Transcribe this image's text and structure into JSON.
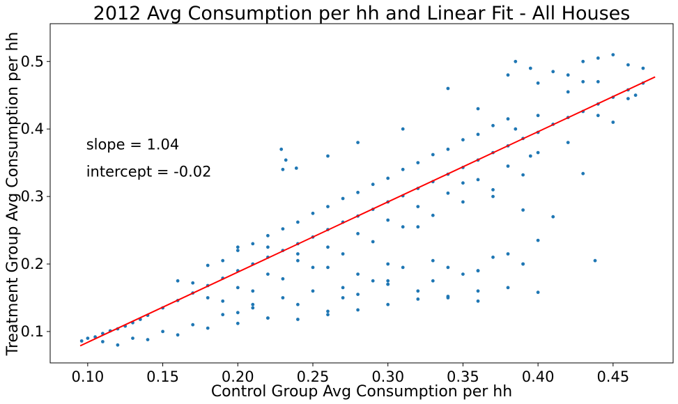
{
  "chart_data": {
    "type": "scatter",
    "title": "2012 Avg Consumption per hh and Linear Fit - All Houses",
    "xlabel": "Control Group Avg Consumption per hh",
    "ylabel": "Treatment Group Avg Consumption per hh",
    "xlim": [
      0.075,
      0.49
    ],
    "ylim": [
      0.0535,
      0.556
    ],
    "xticks": [
      "0.10",
      "0.15",
      "0.20",
      "0.25",
      "0.30",
      "0.35",
      "0.40",
      "0.45"
    ],
    "yticks": [
      "0.1",
      "0.2",
      "0.3",
      "0.4",
      "0.5"
    ],
    "grid": false,
    "annotations": [
      {
        "label": "slope = 1.04",
        "x": 0.099,
        "y": 0.378
      },
      {
        "label": "intercept = -0.02",
        "x": 0.099,
        "y": 0.338
      }
    ],
    "fit": {
      "slope": 1.04,
      "intercept": -0.02,
      "x_range": [
        0.095,
        0.478
      ],
      "color": "#ff0000"
    },
    "scatter_color": "#1f77b4",
    "points_x": [
      0.096,
      0.1,
      0.105,
      0.11,
      0.115,
      0.12,
      0.125,
      0.13,
      0.135,
      0.14,
      0.15,
      0.16,
      0.17,
      0.18,
      0.19,
      0.2,
      0.21,
      0.22,
      0.23,
      0.24,
      0.25,
      0.26,
      0.27,
      0.28,
      0.29,
      0.3,
      0.31,
      0.32,
      0.33,
      0.34,
      0.35,
      0.36,
      0.37,
      0.38,
      0.39,
      0.4,
      0.41,
      0.42,
      0.43,
      0.44,
      0.45,
      0.46,
      0.47,
      0.16,
      0.18,
      0.2,
      0.22,
      0.24,
      0.26,
      0.28,
      0.3,
      0.32,
      0.34,
      0.36,
      0.38,
      0.17,
      0.19,
      0.21,
      0.23,
      0.25,
      0.27,
      0.29,
      0.31,
      0.33,
      0.35,
      0.37,
      0.18,
      0.2,
      0.22,
      0.24,
      0.26,
      0.28,
      0.3,
      0.32,
      0.34,
      0.36,
      0.38,
      0.4,
      0.19,
      0.21,
      0.23,
      0.25,
      0.27,
      0.29,
      0.31,
      0.33,
      0.35,
      0.37,
      0.39,
      0.2,
      0.22,
      0.24,
      0.26,
      0.28,
      0.3,
      0.32,
      0.34,
      0.36,
      0.38,
      0.4,
      0.42,
      0.44,
      0.41,
      0.43,
      0.45,
      0.46,
      0.44,
      0.42,
      0.4,
      0.21,
      0.24,
      0.27,
      0.3,
      0.33,
      0.36,
      0.39,
      0.37,
      0.35,
      0.33,
      0.31,
      0.29,
      0.27,
      0.25,
      0.23,
      0.21,
      0.19,
      0.17,
      0.15,
      0.13,
      0.11,
      0.12,
      0.14,
      0.16,
      0.18,
      0.2,
      0.22,
      0.26,
      0.28,
      0.3,
      0.34,
      0.38,
      0.4,
      0.42,
      0.44,
      0.46,
      0.43,
      0.4,
      0.385,
      0.36,
      0.395,
      0.229,
      0.232,
      0.239,
      0.43,
      0.438,
      0.39,
      0.45,
      0.465,
      0.47,
      0.385,
      0.38,
      0.395,
      0.34,
      0.31,
      0.28,
      0.26,
      0.23,
      0.35,
      0.37,
      0.39,
      0.41,
      0.32,
      0.3,
      0.36,
      0.2,
      0.22,
      0.24,
      0.26,
      0.28,
      0.3,
      0.32,
      0.34,
      0.36
    ],
    "points_y": [
      0.086,
      0.09,
      0.092,
      0.097,
      0.101,
      0.104,
      0.108,
      0.113,
      0.118,
      0.124,
      0.135,
      0.146,
      0.157,
      0.168,
      0.179,
      0.19,
      0.2,
      0.21,
      0.22,
      0.23,
      0.24,
      0.251,
      0.262,
      0.271,
      0.281,
      0.292,
      0.301,
      0.312,
      0.322,
      0.333,
      0.343,
      0.354,
      0.365,
      0.375,
      0.386,
      0.395,
      0.407,
      0.417,
      0.426,
      0.437,
      0.447,
      0.458,
      0.468,
      0.175,
      0.198,
      0.22,
      0.242,
      0.262,
      0.285,
      0.306,
      0.327,
      0.35,
      0.37,
      0.392,
      0.415,
      0.172,
      0.205,
      0.23,
      0.252,
      0.275,
      0.297,
      0.318,
      0.34,
      0.362,
      0.384,
      0.405,
      0.15,
      0.165,
      0.185,
      0.205,
      0.225,
      0.245,
      0.265,
      0.285,
      0.305,
      0.325,
      0.345,
      0.365,
      0.145,
      0.16,
      0.178,
      0.195,
      0.215,
      0.233,
      0.255,
      0.272,
      0.292,
      0.31,
      0.332,
      0.128,
      0.12,
      0.118,
      0.125,
      0.132,
      0.14,
      0.148,
      0.152,
      0.16,
      0.165,
      0.158,
      0.455,
      0.47,
      0.485,
      0.5,
      0.51,
      0.495,
      0.505,
      0.48,
      0.468,
      0.135,
      0.14,
      0.15,
      0.17,
      0.175,
      0.19,
      0.2,
      0.21,
      0.185,
      0.205,
      0.195,
      0.175,
      0.165,
      0.16,
      0.15,
      0.14,
      0.125,
      0.11,
      0.1,
      0.09,
      0.085,
      0.08,
      0.088,
      0.095,
      0.105,
      0.112,
      0.12,
      0.13,
      0.155,
      0.175,
      0.195,
      0.215,
      0.235,
      0.38,
      0.42,
      0.445,
      0.47,
      0.42,
      0.4,
      0.43,
      0.36,
      0.37,
      0.354,
      0.342,
      0.334,
      0.205,
      0.2,
      0.41,
      0.45,
      0.49,
      0.5,
      0.48,
      0.49,
      0.46,
      0.4,
      0.38,
      0.36,
      0.34,
      0.32,
      0.3,
      0.28,
      0.27,
      0.255,
      0.2,
      0.19,
      0.225,
      0.225,
      0.215,
      0.195,
      0.185,
      0.17,
      0.16,
      0.15,
      0.145,
      0.14,
      0.135
    ]
  }
}
